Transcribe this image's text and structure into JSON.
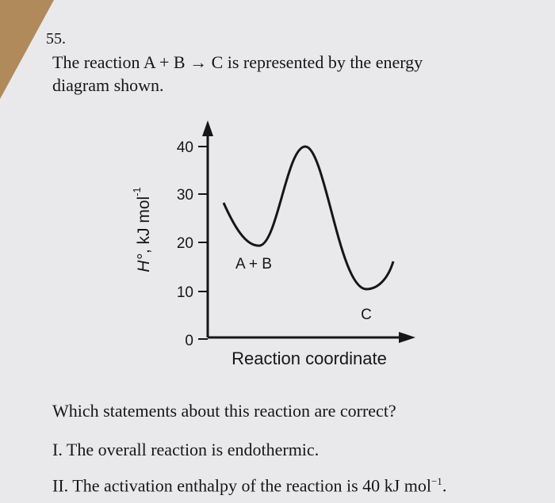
{
  "question": {
    "number": "55.",
    "stem": [
      "The reaction A + B → C is represented by the energy",
      "diagram shown."
    ],
    "prompt": "Which statements about this reaction are correct?",
    "statements": [
      "I.  The overall reaction is endothermic."
    ],
    "statement_2": {
      "text": "II.  The activation enthalpy of the reaction is 40 kJ mol",
      "sup": "−1",
      "end": "."
    }
  },
  "diagram": {
    "y_ticks": [
      "40",
      "30",
      "20",
      "10",
      "0"
    ],
    "y_label_symbol": "H°",
    "y_label_unit": ", kJ mol",
    "y_label_sup": "-1",
    "x_label": "Reaction coordinate",
    "reactant_label": "A + B",
    "product_label": "C"
  }
}
